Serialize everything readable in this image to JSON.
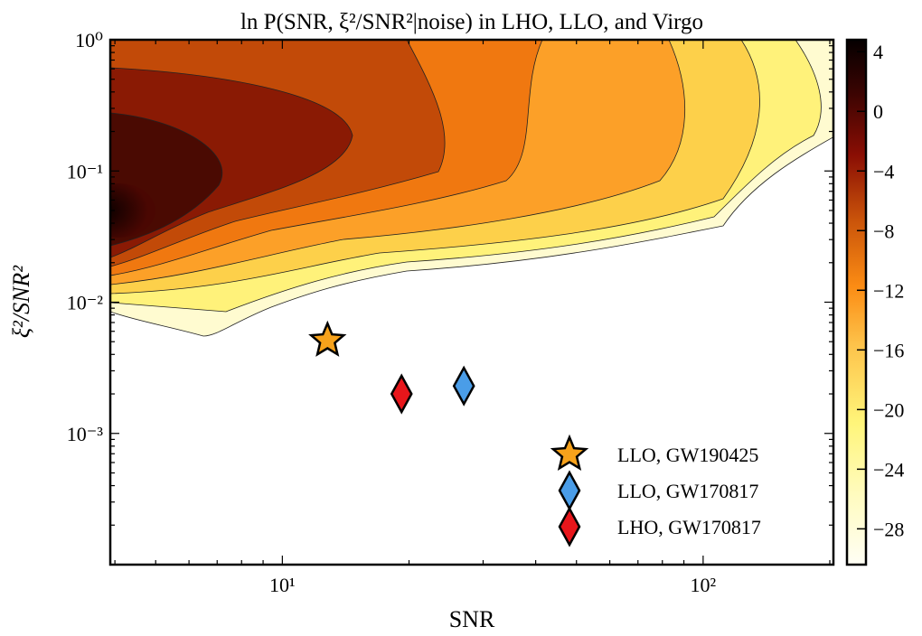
{
  "chart_data": {
    "type": "heatmap",
    "title": "ln P(SNR, ξ²/SNR²|noise) in LHO, LLO, and Virgo",
    "xlabel": "SNR",
    "ylabel": "ξ²/SNR²",
    "xscale": "log",
    "yscale": "log",
    "xlim": [
      3.9,
      204
    ],
    "ylim": [
      0.0001,
      1
    ],
    "xticks": [
      {
        "value": 10,
        "label": "10¹"
      },
      {
        "value": 100,
        "label": "10²"
      }
    ],
    "yticks": [
      {
        "value": 1,
        "label": "10⁰"
      },
      {
        "value": 0.1,
        "label": "10⁻¹"
      },
      {
        "value": 0.01,
        "label": "10⁻²"
      },
      {
        "value": 0.001,
        "label": "10⁻³"
      }
    ],
    "grid": false,
    "colorbar": {
      "range": [
        -30.4,
        4.8
      ],
      "ticks": [
        4,
        0,
        -4,
        -8,
        -12,
        -16,
        -20,
        -24,
        -28
      ],
      "tick_labels": [
        "4",
        "0",
        "−4",
        "−8",
        "−12",
        "−16",
        "−20",
        "−24",
        "−28"
      ],
      "colormap": "afmhot_r",
      "colors": [
        "#fffef5",
        "#fff57a",
        "#fdd24a",
        "#fca22a",
        "#f47c10",
        "#c64e08",
        "#8c1a04",
        "#4a0702",
        "#050000"
      ]
    },
    "contour_levels": [
      -28,
      -24,
      -20,
      -16,
      -12,
      -8,
      -4,
      0
    ],
    "points": [
      {
        "name": "LLO, GW190425",
        "snr": 12.8,
        "y": 0.0051,
        "marker": "star",
        "color": "#f7a21b"
      },
      {
        "name": "LLO, GW170817",
        "snr": 27.0,
        "y": 0.0023,
        "marker": "diamond",
        "color": "#4a9de8"
      },
      {
        "name": "LHO, GW170817",
        "snr": 19.2,
        "y": 0.002,
        "marker": "diamond",
        "color": "#e8161b"
      }
    ],
    "legend_position": "bottom-right"
  }
}
